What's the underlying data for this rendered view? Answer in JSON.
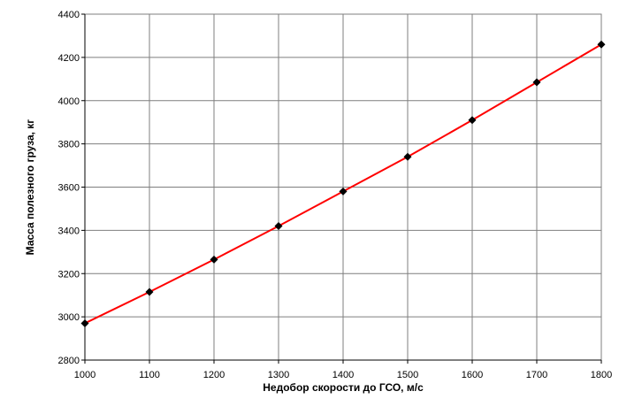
{
  "chart_data": {
    "type": "line",
    "title": "",
    "xlabel": "Недобор скорости до ГСО, м/с",
    "ylabel": "Масса полезного груза, кг",
    "x": [
      1000,
      1100,
      1200,
      1300,
      1400,
      1500,
      1600,
      1700,
      1800
    ],
    "series": [
      {
        "values": [
          2970,
          3115,
          3265,
          3420,
          3580,
          3740,
          3910,
          4085,
          4260
        ]
      }
    ],
    "xlim": [
      1000,
      1800
    ],
    "ylim": [
      2800,
      4400
    ],
    "xticks": [
      1000,
      1100,
      1200,
      1300,
      1400,
      1500,
      1600,
      1700,
      1800
    ],
    "yticks": [
      2800,
      3000,
      3200,
      3400,
      3600,
      3800,
      4000,
      4200,
      4400
    ],
    "grid": true,
    "legend": "none",
    "colors": {
      "line": "#ff0000",
      "marker": "#000000",
      "grid": "#7f7f7f",
      "axis": "#000000"
    }
  }
}
